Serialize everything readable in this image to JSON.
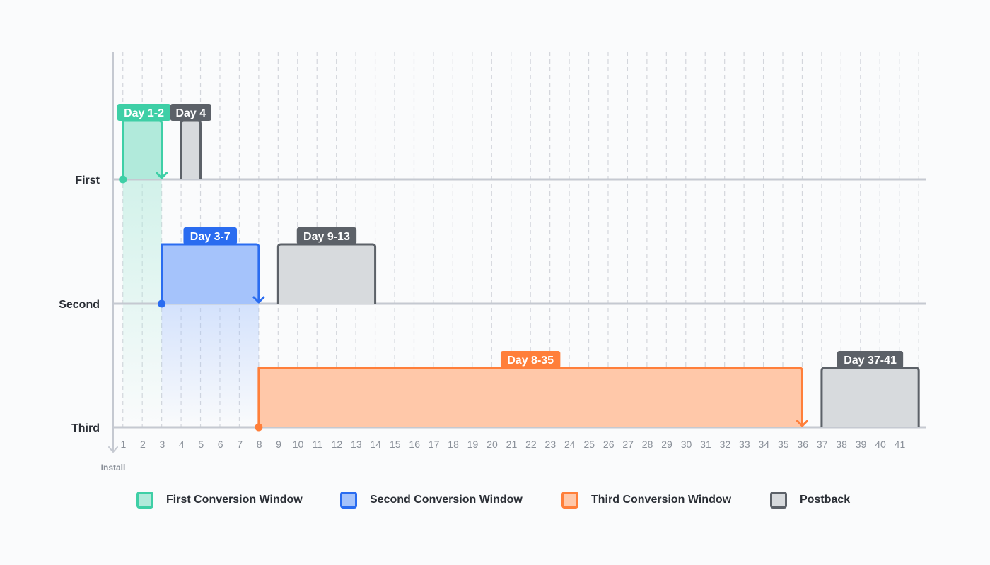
{
  "rows": [
    {
      "label": "First"
    },
    {
      "label": "Second"
    },
    {
      "label": "Third"
    }
  ],
  "axis": {
    "day_start": 1,
    "day_end": 41,
    "origin_label": "Install"
  },
  "windows": [
    {
      "row": 0,
      "kind": "first",
      "start": 1,
      "end": 2,
      "label": "Day 1-2"
    },
    {
      "row": 0,
      "kind": "postback",
      "start": 4,
      "end": 4,
      "label": "Day 4"
    },
    {
      "row": 1,
      "kind": "second",
      "start": 3,
      "end": 7,
      "label": "Day 3-7"
    },
    {
      "row": 1,
      "kind": "postback",
      "start": 9,
      "end": 13,
      "label": "Day 9-13"
    },
    {
      "row": 2,
      "kind": "third",
      "start": 8,
      "end": 35,
      "label": "Day 8-35"
    },
    {
      "row": 2,
      "kind": "postback",
      "start": 37,
      "end": 41,
      "label": "Day 37-41"
    }
  ],
  "colors": {
    "first": {
      "stroke": "#3ecfa6",
      "fill": "#b1eadb",
      "badge": "#3ecfa6"
    },
    "second": {
      "stroke": "#2a6cf0",
      "fill": "#a5c3fb",
      "badge": "#2a6cf0"
    },
    "third": {
      "stroke": "#ff7f3a",
      "fill": "#ffc8a9",
      "badge": "#ff7f3a"
    },
    "postback": {
      "stroke": "#5c6168",
      "fill": "#d7dadd",
      "badge": "#5c6168"
    },
    "axis": "#c5c9d1",
    "grid": "#d3d6dc"
  },
  "legend": [
    {
      "kind": "first",
      "label": "First Conversion Window"
    },
    {
      "kind": "second",
      "label": "Second Conversion Window"
    },
    {
      "kind": "third",
      "label": "Third Conversion Window"
    },
    {
      "kind": "postback",
      "label": "Postback"
    }
  ]
}
